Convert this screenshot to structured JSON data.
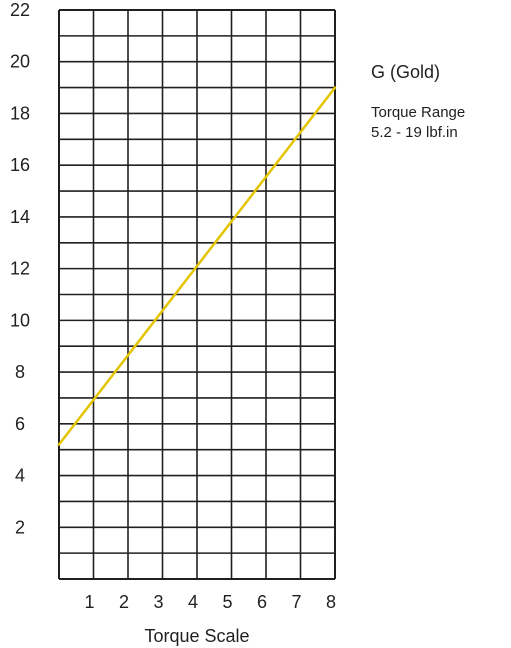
{
  "chart_data": {
    "type": "line",
    "title": "",
    "xlabel": "Torque Scale",
    "ylabel": "",
    "xlim": [
      0,
      8
    ],
    "ylim": [
      0,
      22
    ],
    "x_ticks": [
      "1",
      "2",
      "3",
      "4",
      "5",
      "6",
      "7",
      "8"
    ],
    "y_ticks": [
      "2",
      "4",
      "6",
      "8",
      "10",
      "12",
      "14",
      "16",
      "18",
      "20",
      "22"
    ],
    "grid": true,
    "grid_x_step": 1,
    "grid_y_step": 1,
    "series": [
      {
        "color": "#e2c500",
        "points": [
          {
            "x": 0,
            "y": 5.2
          },
          {
            "x": 8,
            "y": 19
          }
        ]
      }
    ]
  },
  "legend": {
    "title": "G (Gold)",
    "range_label": "Torque Range",
    "range_value": "5.2 - 19 lbf.in"
  },
  "colors": {
    "grid": "#231f20",
    "line": "#e2c500"
  }
}
